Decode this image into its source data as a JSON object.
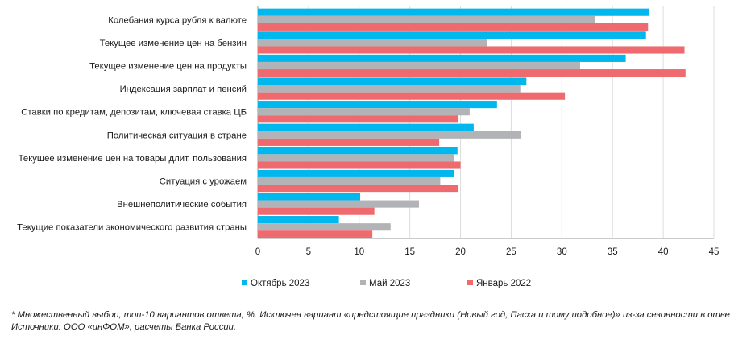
{
  "chart_data": {
    "type": "bar",
    "orientation": "horizontal",
    "categories": [
      "Колебания курса рубля к валюте",
      "Текущее изменение цен на бензин",
      "Текущее изменение цен на продукты",
      "Индексация зарплат и пенсий",
      "Ставки по кредитам, депозитам, ключевая ставка ЦБ",
      "Политическая ситуация в стране",
      "Текущее изменение цен на товары длит. пользования",
      "Ситуация с урожаем",
      "Внешнеполитические события",
      "Текущие показатели экономического развития страны"
    ],
    "series": [
      {
        "name": "Октябрь 2023",
        "color": "#00b7ee",
        "values": [
          38.6,
          38.3,
          36.3,
          26.5,
          23.6,
          21.3,
          19.7,
          19.4,
          10.1,
          8.0
        ]
      },
      {
        "name": "Май 2023",
        "color": "#b1b3b6",
        "values": [
          33.3,
          22.6,
          31.8,
          25.9,
          20.9,
          26.0,
          19.4,
          18.0,
          15.9,
          13.1
        ]
      },
      {
        "name": "Январь 2022",
        "color": "#ef6a6e",
        "values": [
          38.5,
          42.1,
          42.2,
          30.3,
          19.8,
          17.9,
          20.0,
          19.8,
          11.5,
          11.3
        ]
      }
    ],
    "xlim": [
      0,
      45
    ],
    "xticks": [
      0,
      5,
      10,
      15,
      20,
      25,
      30,
      35,
      40,
      45
    ],
    "grid": true,
    "legend": "bottom",
    "title": "",
    "xlabel": "",
    "ylabel": ""
  },
  "footnote": {
    "line1": "* Множественный выбор, топ-10 вариантов ответа, %. Исключен вариант «предстоящие праздники (Новый год, Пасха и тому подобное)» из-за сезонности в ответах.",
    "line2": "Источники: ООО «инФОМ», расчеты Банка России."
  }
}
